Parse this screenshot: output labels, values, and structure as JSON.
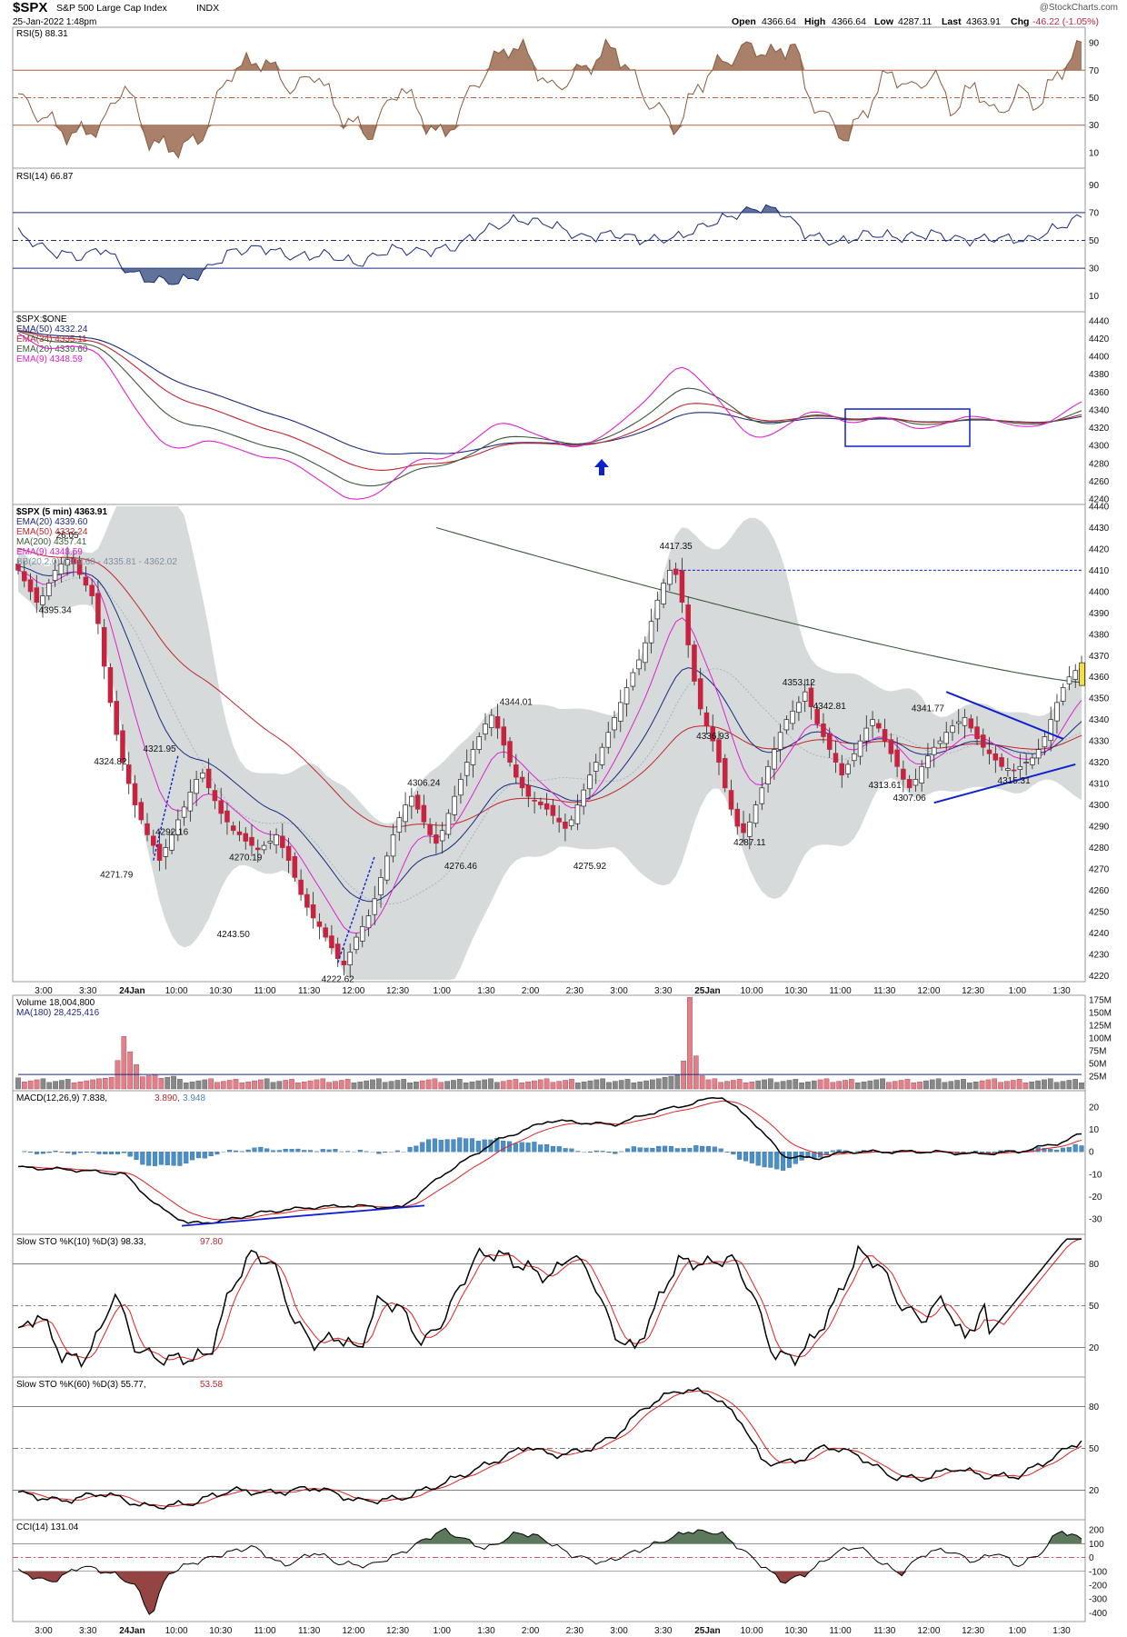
{
  "header": {
    "symbol": "$SPX",
    "name": "S&P 500 Large Cap Index",
    "exchange": "INDX",
    "date": "25-Jan-2022 1:48pm",
    "watermark": "@StockCharts.com",
    "open_label": "Open",
    "open": "4366.64",
    "high_label": "High",
    "high": "4366.64",
    "low_label": "Low",
    "low": "4287.11",
    "last_label": "Last",
    "last": "4363.91",
    "chg_label": "Chg",
    "chg": "-46.22 (-1.05%)"
  },
  "colors": {
    "up": "#ffffff",
    "down": "#c4243f",
    "bollinger": "#d4d8d8",
    "ema20": "#1a2a80",
    "ema50": "#c0262c",
    "ma200": "#3a5a3a",
    "ema9": "#e020d0",
    "rsi5": "#8b5a3c",
    "rsi14": "#1a2a80",
    "trend": "#1020d0"
  },
  "x_labels": [
    "3:00",
    "3:30",
    "24Jan",
    "10:00",
    "10:30",
    "11:00",
    "11:30",
    "12:00",
    "12:30",
    "1:00",
    "1:30",
    "2:00",
    "2:30",
    "3:00",
    "3:30",
    "25Jan",
    "10:00",
    "10:30",
    "11:00",
    "11:30",
    "12:00",
    "12:30",
    "1:00",
    "1:30"
  ],
  "panels": {
    "rsi5": {
      "title": "RSI(5) 88.31",
      "ticks": [
        "90",
        "70",
        "50",
        "30",
        "10"
      ]
    },
    "rsi14": {
      "title": "RSI(14) 66.87",
      "ticks": [
        "90",
        "70",
        "50",
        "30",
        "10"
      ]
    },
    "ema": {
      "title": "$SPX:$ONE",
      "legend": [
        "EMA(50) 4332.24",
        "EMA(34) 4335.11",
        "EMA(20) 4339.60",
        "EMA(9) 4348.59"
      ],
      "ticks": [
        "4440",
        "4420",
        "4400",
        "4380",
        "4360",
        "4340",
        "4320",
        "4300",
        "4280",
        "4260",
        "4240"
      ]
    },
    "price": {
      "title": "$SPX (5 min) 4363.91",
      "legend": [
        "EMA(20) 4339.60",
        "EMA(50) 4332.24",
        "MA(200) 4357.41",
        "EMA(9) 4348.59",
        "BB(20,2.0) 4309.60 - 4335.81 - 4362.02"
      ],
      "ticks": [
        "4440",
        "4430",
        "4420",
        "4410",
        "4400",
        "4390",
        "4380",
        "4370",
        "4360",
        "4350",
        "4340",
        "4330",
        "4320",
        "4310",
        "4300",
        "4290",
        "4280",
        "4270",
        "4260",
        "4250",
        "4240",
        "4230",
        "4220"
      ],
      "annotations": [
        "26.05",
        "4395.34",
        "4324.82",
        "4321.95",
        "4292.16",
        "4271.79",
        "4270.19",
        "4243.50",
        "4222.62",
        "4306.24",
        "4276.46",
        "4344.01",
        "4275.92",
        "4417.35",
        "4336.93",
        "4287.11",
        "4353.12",
        "4342.81",
        "4341.77",
        "4313.61",
        "4307.06",
        "4315.31"
      ]
    },
    "volume": {
      "title": "Volume 18,004,800",
      "legend": "MA(180) 28,425,416",
      "ticks": [
        "175M",
        "150M",
        "125M",
        "100M",
        "75M",
        "50M",
        "25M"
      ]
    },
    "macd": {
      "title": "MACD(12,26,9) 7.838,",
      "v2": "3.890,",
      "v3": "3.948",
      "ticks": [
        "20",
        "10",
        "0",
        "-10",
        "-20",
        "-30"
      ]
    },
    "sto10": {
      "title": "Slow STO %K(10) %D(3) 98.33,",
      "v2": "97.80",
      "ticks": [
        "80",
        "50",
        "20"
      ]
    },
    "sto60": {
      "title": "Slow STO %K(60) %D(3) 55.77,",
      "v2": "53.58",
      "ticks": [
        "80",
        "50",
        "20"
      ]
    },
    "cci": {
      "title": "CCI(14) 131.04",
      "ticks": [
        "200",
        "100",
        "0",
        "-100",
        "-200",
        "-300",
        "-400"
      ]
    }
  },
  "chart_data": [
    {
      "type": "candlestick",
      "title": "$SPX (5 min) 4363.91",
      "ylim": [
        4218,
        4440
      ],
      "closes": [
        4410,
        4405,
        4400,
        4395,
        4398,
        4404,
        4410,
        4413,
        4415,
        4413,
        4408,
        4403,
        4398,
        4385,
        4365,
        4348,
        4333,
        4320,
        4310,
        4300,
        4293,
        4286,
        4281,
        4274,
        4280,
        4286,
        4293,
        4299,
        4306,
        4312,
        4315,
        4308,
        4302,
        4296,
        4292,
        4288,
        4286,
        4283,
        4281,
        4279,
        4281,
        4283,
        4286,
        4280,
        4274,
        4266,
        4258,
        4252,
        4247,
        4243,
        4238,
        4233,
        4228,
        4225,
        4231,
        4238,
        4243,
        4248,
        4256,
        4266,
        4276,
        4286,
        4294,
        4300,
        4304,
        4298,
        4292,
        4286,
        4282,
        4288,
        4296,
        4304,
        4312,
        4320,
        4326,
        4332,
        4338,
        4342,
        4336,
        4328,
        4320,
        4313,
        4308,
        4304,
        4302,
        4300,
        4298,
        4295,
        4292,
        4289,
        4293,
        4300,
        4307,
        4314,
        4320,
        4327,
        4334,
        4341,
        4348,
        4355,
        4362,
        4368,
        4376,
        4386,
        4396,
        4404,
        4410,
        4408,
        4395,
        4375,
        4358,
        4345,
        4337,
        4330,
        4320,
        4308,
        4298,
        4290,
        4287,
        4292,
        4300,
        4308,
        4318,
        4326,
        4334,
        4340,
        4344,
        4348,
        4353,
        4346,
        4338,
        4332,
        4326,
        4320,
        4314,
        4319,
        4324,
        4330,
        4336,
        4340,
        4336,
        4330,
        4324,
        4318,
        4312,
        4308,
        4312,
        4318,
        4323,
        4327,
        4330,
        4334,
        4337,
        4339,
        4341,
        4336,
        4331,
        4327,
        4324,
        4321,
        4318,
        4317,
        4316,
        4318,
        4320,
        4322,
        4326,
        4332,
        4340,
        4348,
        4355,
        4360,
        4363,
        4363.91
      ],
      "annotations": [
        {
          "label": "4417.35",
          "value": 4417.35
        },
        {
          "label": "4222.62",
          "value": 4222.62
        },
        {
          "label": "4287.11",
          "value": 4287.11
        },
        {
          "label": "4353.12",
          "value": 4353.12
        }
      ],
      "ma200_from_to": [
        4430,
        4357.41
      ],
      "resistance_line": 4410
    },
    {
      "type": "line",
      "title": "RSI(5) 88.31",
      "ylim": [
        0,
        100
      ],
      "ref_lines": [
        30,
        50,
        70
      ]
    },
    {
      "type": "line",
      "title": "RSI(14) 66.87",
      "ylim": [
        0,
        100
      ],
      "ref_lines": [
        30,
        50,
        70
      ]
    },
    {
      "type": "bar",
      "title": "Volume 18,004,800",
      "ylim": [
        0,
        175
      ],
      "unit": "M"
    },
    {
      "type": "line",
      "title": "MACD(12,26,9)",
      "ylim": [
        -36,
        26
      ]
    },
    {
      "type": "line",
      "title": "Slow STO %K(10) %D(3)",
      "ylim": [
        0,
        100
      ],
      "ref_lines": [
        20,
        50,
        80
      ]
    },
    {
      "type": "line",
      "title": "Slow STO %K(60) %D(3)",
      "ylim": [
        0,
        100
      ],
      "ref_lines": [
        20,
        50,
        80
      ]
    },
    {
      "type": "line",
      "title": "CCI(14) 131.04",
      "ylim": [
        -450,
        260
      ],
      "ref_lines": [
        -100,
        0,
        100
      ]
    }
  ]
}
